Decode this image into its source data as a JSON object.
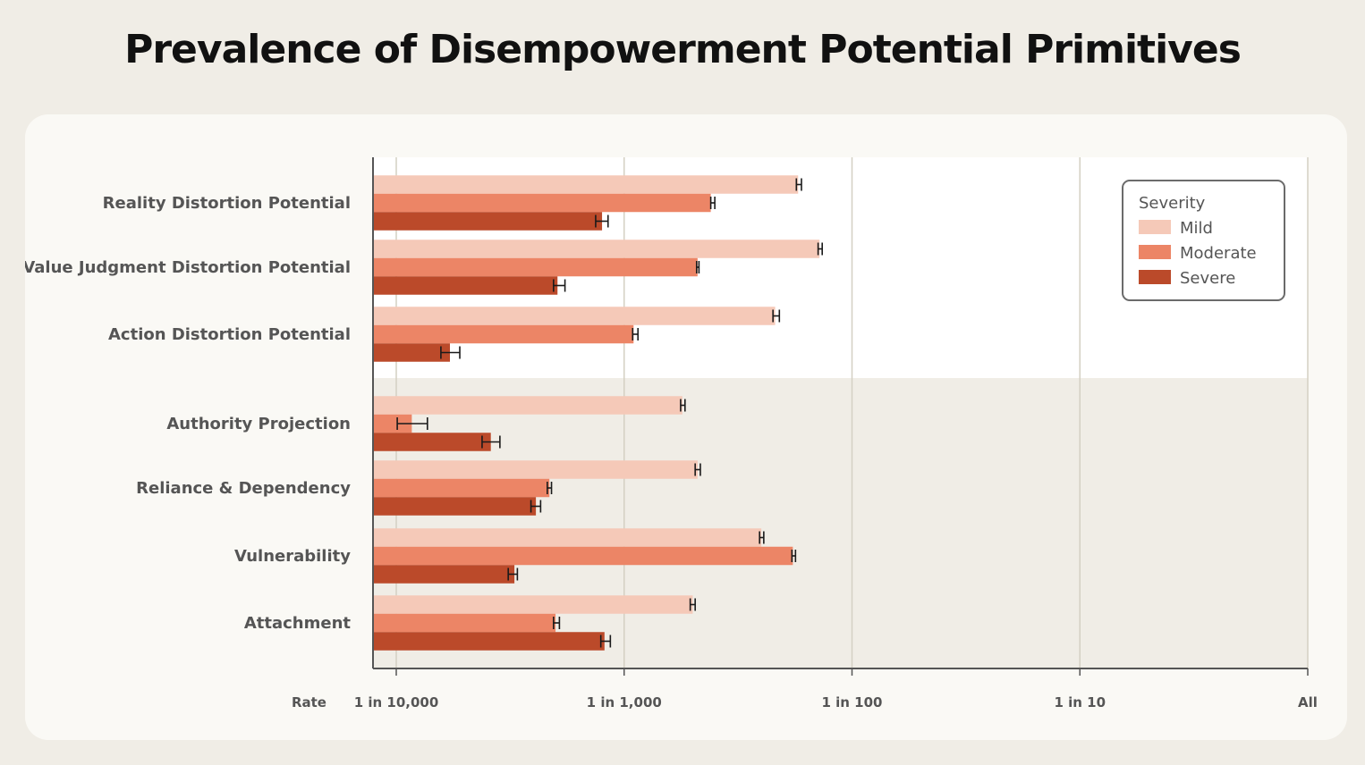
{
  "title": "Prevalence of Disempowerment Potential Primitives",
  "chart_data": {
    "type": "bar",
    "orientation": "horizontal",
    "x_scale": "log",
    "xlim": [
      0.0001,
      1
    ],
    "x_axis_name": "Rate",
    "x_ticks": [
      {
        "value": 0.0001,
        "label": "1 in 10,000"
      },
      {
        "value": 0.001,
        "label": "1 in 1,000"
      },
      {
        "value": 0.01,
        "label": "1 in 100"
      },
      {
        "value": 0.1,
        "label": "1 in 10"
      },
      {
        "value": 1,
        "label": "All"
      }
    ],
    "categories": [
      "Reality Distortion Potential",
      "Value Judgment Distortion Potential",
      "Action Distortion Potential",
      "Authority Projection",
      "Reliance & Dependency",
      "Vulnerability",
      "Attachment"
    ],
    "groups": [
      {
        "name": "",
        "categories": [
          "Reality Distortion Potential",
          "Value Judgment Distortion Potential",
          "Action Distortion Potential"
        ],
        "background": "#ffffff"
      },
      {
        "name": "",
        "categories": [
          "Authority Projection",
          "Reliance & Dependency",
          "Vulnerability",
          "Attachment"
        ],
        "background": "#f0ede6"
      }
    ],
    "legend_title": "Severity",
    "legend_position": "top-right",
    "grid": "vertical",
    "series": [
      {
        "name": "Mild",
        "color": "#f5c9b8",
        "values": [
          0.0058,
          0.0072,
          0.0046,
          0.0018,
          0.0021,
          0.004,
          0.002
        ],
        "ci_low": [
          0.0057,
          0.0071,
          0.0045,
          0.00177,
          0.00205,
          0.00393,
          0.00195
        ],
        "ci_high": [
          0.006,
          0.0074,
          0.0048,
          0.00185,
          0.00216,
          0.0041,
          0.00205
        ]
      },
      {
        "name": "Moderate",
        "color": "#ec8566",
        "values": [
          0.0024,
          0.0021,
          0.0011,
          0.000117,
          0.00047,
          0.0055,
          0.0005
        ],
        "ci_low": [
          0.0024,
          0.00208,
          0.00109,
          0.000101,
          0.00046,
          0.00545,
          0.00049
        ],
        "ci_high": [
          0.0025,
          0.00213,
          0.00115,
          0.000137,
          0.00048,
          0.00565,
          0.00052
        ]
      },
      {
        "name": "Severe",
        "color": "#bb4a2a",
        "values": [
          0.0008,
          0.00051,
          0.000172,
          0.00026,
          0.00041,
          0.00033,
          0.00082
        ],
        "ci_low": [
          0.00075,
          0.00049,
          0.000157,
          0.000238,
          0.00039,
          0.00031,
          0.00079
        ],
        "ci_high": [
          0.00085,
          0.00055,
          0.00019,
          0.000285,
          0.00043,
          0.00034,
          0.00087
        ]
      }
    ]
  }
}
